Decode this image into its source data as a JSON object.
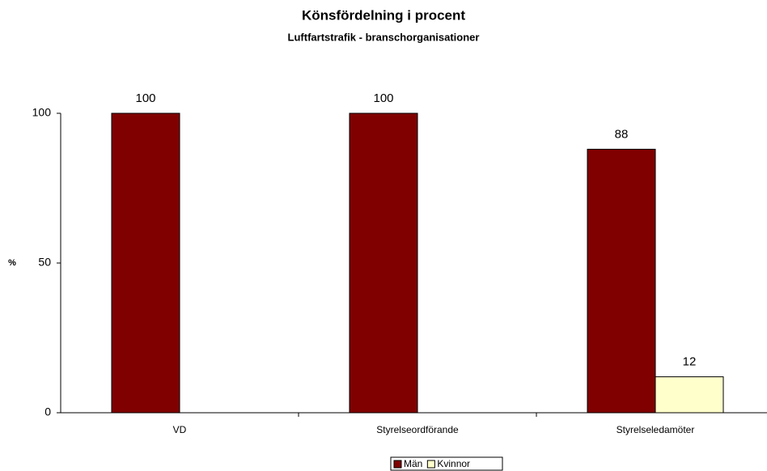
{
  "chart_data": {
    "type": "bar",
    "title": "Könsfördelning i procent",
    "subtitle": "Luftfartstrafik - branschorganisationer",
    "y_label": "%",
    "categories": [
      "VD",
      "Styrelseordförande",
      "Styrelseledamöter"
    ],
    "series": [
      {
        "name": "Män",
        "color": "#800000",
        "values": [
          100,
          100,
          88
        ]
      },
      {
        "name": "Kvinnor",
        "color": "#ffffcc",
        "values": [
          null,
          null,
          12
        ]
      }
    ],
    "ylim": [
      0,
      100
    ],
    "yticks": [
      0,
      50,
      100
    ],
    "legend": "bottom"
  }
}
